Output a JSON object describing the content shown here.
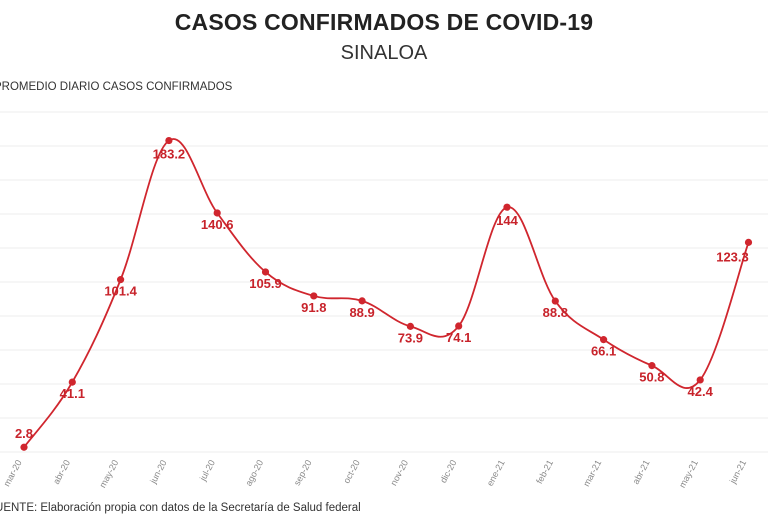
{
  "header": {
    "title": "CASOS CONFIRMADOS DE COVID-19",
    "subtitle": "SINALOA"
  },
  "footer": {
    "source": "FUENTE: Elaboración propia con datos de la Secretaría de Salud federal"
  },
  "chart_data": {
    "type": "line",
    "title": "CASOS CONFIRMADOS DE COVID-19",
    "subtitle": "SINALOA",
    "ylabel": "PROMEDIO DIARIO CASOS CONFIRMADOS",
    "xlabel": "",
    "categories": [
      "mar-20",
      "abr-20",
      "may-20",
      "jun-20",
      "jul-20",
      "ago-20",
      "sep-20",
      "oct-20",
      "nov-20",
      "dic-20",
      "ene-21",
      "feb-21",
      "mar-21",
      "abr-21",
      "may-21",
      "jun-21"
    ],
    "series": [
      {
        "values": [
          2.8,
          41.1,
          101.4,
          183.2,
          140.6,
          105.9,
          91.8,
          88.9,
          73.9,
          74.1,
          144,
          88.8,
          66.1,
          50.8,
          42.4,
          123.3
        ],
        "labels": [
          "2.8",
          "41.1",
          "101.4",
          "183.2",
          "140.6",
          "105.9",
          "91.8",
          "88.9",
          "73.9",
          "74.1",
          "144",
          "88.8",
          "66.1",
          "50.8",
          "42.4",
          "123.3"
        ],
        "color": "#d0262e"
      }
    ],
    "ylim": [
      0,
      200
    ],
    "grid": true,
    "legend": "none",
    "data_labels": true
  }
}
